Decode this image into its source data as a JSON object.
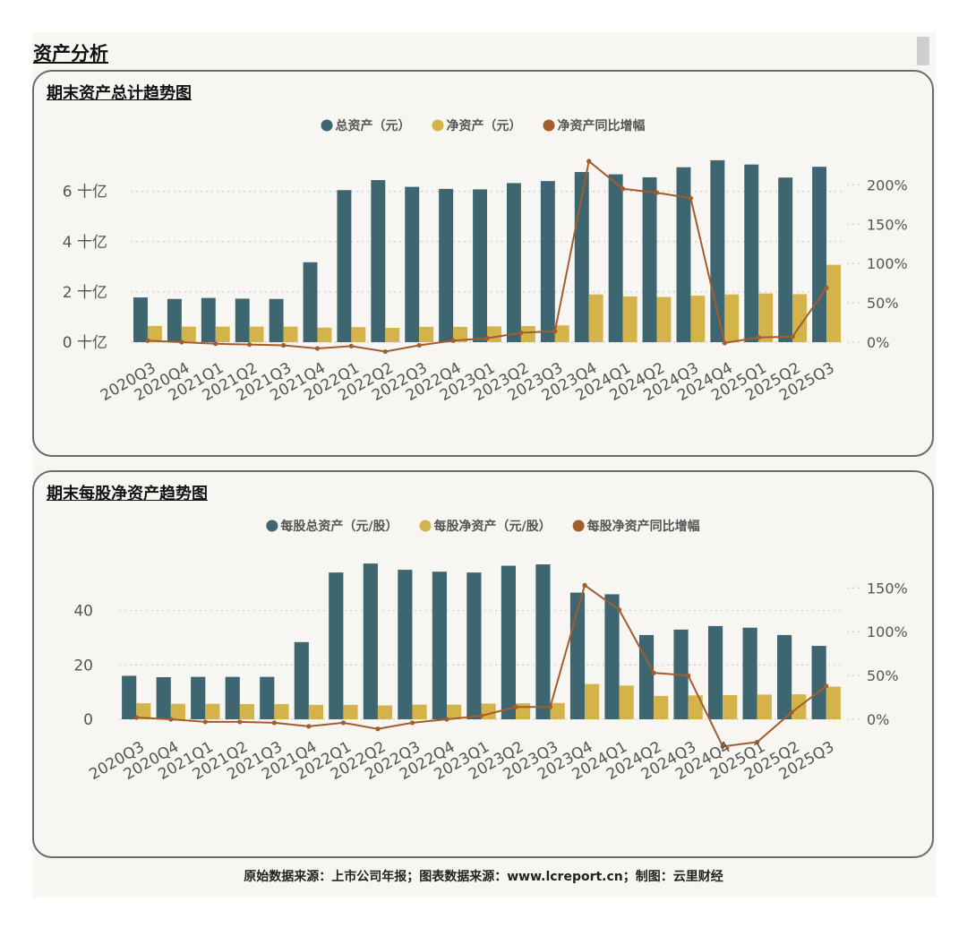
{
  "section_title": "资产分析",
  "footer": "原始数据来源：上市公司年报；图表数据来源：www.lcreport.cn；制图：云里财经",
  "colors": {
    "bar_primary": "#3d6670",
    "bar_secondary": "#d4b44a",
    "line": "#a35c2e",
    "grid": "#cfcfcf",
    "text": "#555555"
  },
  "chart_data": [
    {
      "type": "bar",
      "title": "期末资产总计趋势图",
      "categories": [
        "2020Q3",
        "2020Q4",
        "2021Q1",
        "2021Q2",
        "2021Q3",
        "2021Q4",
        "2022Q1",
        "2022Q2",
        "2022Q3",
        "2022Q4",
        "2023Q1",
        "2023Q2",
        "2023Q3",
        "2023Q4",
        "2024Q1",
        "2024Q2",
        "2024Q3",
        "2024Q4",
        "2025Q1",
        "2025Q2",
        "2025Q3"
      ],
      "y_ticks": [
        {
          "value": 0,
          "label": "0 十亿"
        },
        {
          "value": 2,
          "label": "2 十亿"
        },
        {
          "value": 4,
          "label": "4 十亿"
        },
        {
          "value": 6,
          "label": "6 十亿"
        }
      ],
      "y_right_ticks": [
        {
          "value": 0,
          "label": "0%"
        },
        {
          "value": 50,
          "label": "50%"
        },
        {
          "value": 100,
          "label": "100%"
        },
        {
          "value": 150,
          "label": "150%"
        },
        {
          "value": 200,
          "label": "200%"
        }
      ],
      "ylim": [
        0,
        7.2
      ],
      "y2lim": [
        -10,
        230
      ],
      "series": [
        {
          "name": "总资产（元）",
          "kind": "bar",
          "values": [
            1.78,
            1.72,
            1.76,
            1.73,
            1.72,
            3.18,
            6.05,
            6.45,
            6.18,
            6.1,
            6.08,
            6.33,
            6.41,
            6.77,
            6.68,
            6.56,
            6.96,
            7.24,
            7.07,
            6.55,
            6.98
          ]
        },
        {
          "name": "净资产（元）",
          "kind": "bar",
          "values": [
            0.65,
            0.62,
            0.62,
            0.62,
            0.62,
            0.58,
            0.6,
            0.57,
            0.61,
            0.61,
            0.63,
            0.64,
            0.67,
            1.9,
            1.82,
            1.8,
            1.85,
            1.9,
            1.94,
            1.91,
            3.08
          ]
        },
        {
          "name": "净资产同比增幅",
          "kind": "line",
          "values": [
            2,
            0,
            -2,
            -3,
            -4,
            -8,
            -5,
            -12,
            -4,
            2,
            5,
            12,
            14,
            230,
            195,
            190,
            183,
            -1,
            6,
            7,
            69
          ]
        }
      ]
    },
    {
      "type": "bar",
      "title": "期末每股净资产趋势图",
      "categories": [
        "2020Q3",
        "2020Q4",
        "2021Q1",
        "2021Q2",
        "2021Q3",
        "2021Q4",
        "2022Q1",
        "2022Q2",
        "2022Q3",
        "2022Q4",
        "2023Q1",
        "2023Q2",
        "2023Q3",
        "2023Q4",
        "2024Q1",
        "2024Q2",
        "2024Q3",
        "2024Q4",
        "2025Q1",
        "2025Q2",
        "2025Q3"
      ],
      "y_ticks": [
        {
          "value": 0,
          "label": "0"
        },
        {
          "value": 20,
          "label": "20"
        },
        {
          "value": 40,
          "label": "40"
        }
      ],
      "y_right_ticks": [
        {
          "value": 0,
          "label": "0%"
        },
        {
          "value": 50,
          "label": "50%"
        },
        {
          "value": 100,
          "label": "100%"
        },
        {
          "value": 150,
          "label": "150%"
        }
      ],
      "ylim": [
        -10,
        58
      ],
      "y2lim": [
        -50,
        180
      ],
      "series": [
        {
          "name": "每股总资产（元/股）",
          "kind": "bar",
          "values": [
            16,
            15.5,
            15.6,
            15.6,
            15.6,
            28.4,
            54,
            57.3,
            55,
            54.3,
            54,
            56.5,
            57,
            46.6,
            46,
            31,
            33,
            34.3,
            33.7,
            31,
            27
          ]
        },
        {
          "name": "每股净资产（元/股）",
          "kind": "bar",
          "values": [
            5.9,
            5.7,
            5.7,
            5.6,
            5.6,
            5.3,
            5.3,
            5.1,
            5.4,
            5.4,
            5.8,
            5.9,
            6,
            13,
            12.4,
            8.6,
            8.8,
            8.9,
            9.1,
            9.2,
            12
          ]
        },
        {
          "name": "每股净资产同比增幅",
          "kind": "line",
          "values": [
            2,
            0,
            -3,
            -3,
            -4,
            -8,
            -4,
            -11,
            -4,
            0,
            4,
            14,
            14,
            153,
            125,
            53,
            50,
            -31,
            -26,
            8,
            38
          ]
        }
      ]
    }
  ]
}
